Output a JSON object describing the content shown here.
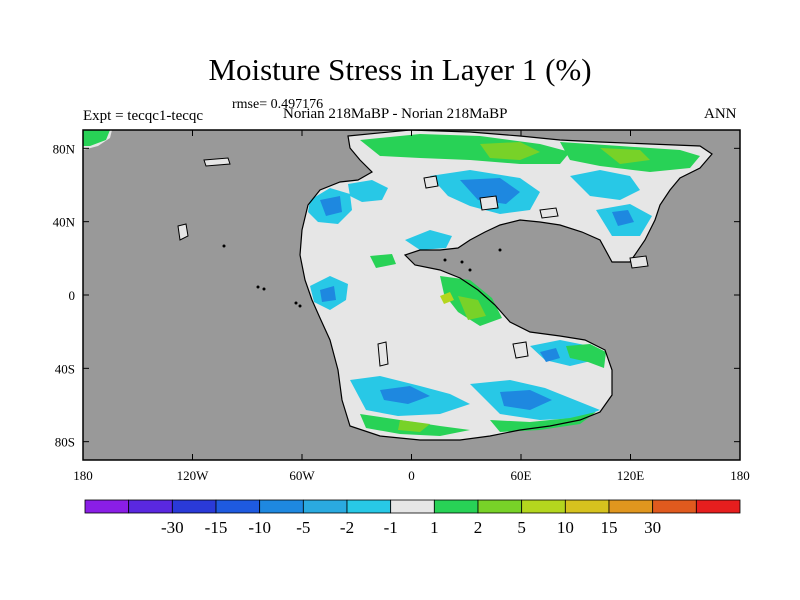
{
  "header": {
    "title": "Moisture Stress in Layer 1 (%)",
    "rmse": "rmse= 0.497176",
    "experiment": "Expt = tecqc1-tecqc",
    "runs": "Norian 218MaBP - Norian 218MaBP",
    "season": "ANN"
  },
  "map": {
    "projection": "cylindrical-equidistant",
    "lon_range": [
      -180,
      180
    ],
    "lat_range": [
      -90,
      90
    ],
    "ocean_color": "#999999",
    "land_color": "#e6e6e6",
    "x_ticks": [
      {
        "lon": -180,
        "label": "180"
      },
      {
        "lon": -120,
        "label": "120W"
      },
      {
        "lon": -60,
        "label": "60W"
      },
      {
        "lon": 0,
        "label": "0"
      },
      {
        "lon": 60,
        "label": "60E"
      },
      {
        "lon": 120,
        "label": "120E"
      },
      {
        "lon": 180,
        "label": "180"
      }
    ],
    "y_ticks": [
      {
        "lat": 80,
        "label": "80N"
      },
      {
        "lat": 40,
        "label": "40N"
      },
      {
        "lat": 0,
        "label": "0"
      },
      {
        "lat": -40,
        "label": "40S"
      },
      {
        "lat": -80,
        "label": "80S"
      }
    ]
  },
  "colorbar": {
    "colors": [
      "#8a1ee6",
      "#5a28e0",
      "#2a3ad8",
      "#1e5ae0",
      "#1e88e0",
      "#2aaae0",
      "#28c8e6",
      "#e6e6e6",
      "#28d256",
      "#78d228",
      "#b4d61e",
      "#d6c21e",
      "#e0961e",
      "#e05a1e",
      "#e61e1e"
    ],
    "labels": [
      "-30",
      "-15",
      "-10",
      "-5",
      "-2",
      "-1",
      "1",
      "2",
      "5",
      "10",
      "15",
      "30"
    ]
  }
}
